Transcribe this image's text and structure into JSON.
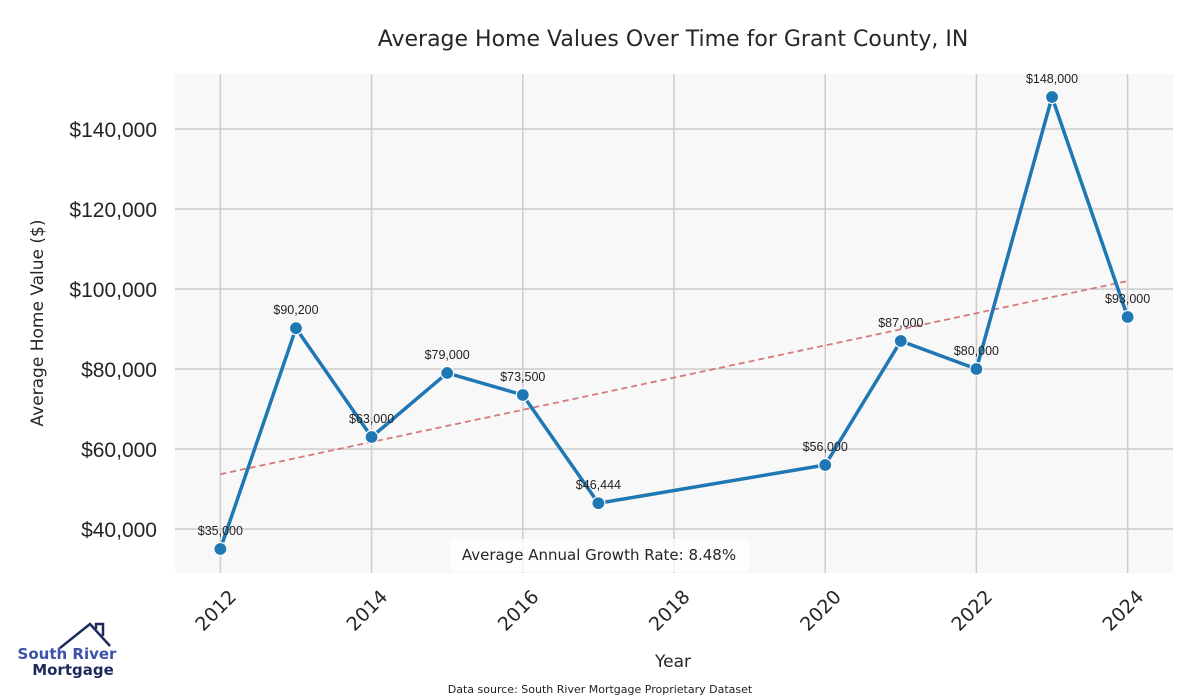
{
  "chart_data": {
    "type": "line",
    "title": "Average Home Values Over Time for Grant County, IN",
    "xlabel": "Year",
    "ylabel": "Average Home Value ($)",
    "x": [
      2012,
      2013,
      2014,
      2015,
      2016,
      2017,
      2020,
      2021,
      2022,
      2023,
      2024
    ],
    "series": [
      {
        "name": "Average Home Value",
        "color": "#1f77b4",
        "values": [
          35000,
          90200,
          63000,
          79000,
          73500,
          46444,
          56000,
          87000,
          80000,
          148000,
          93000
        ],
        "labels": [
          "$35,000",
          "$90,200",
          "$63,000",
          "$79,000",
          "$73,500",
          "$46,444",
          "$56,000",
          "$87,000",
          "$80,000",
          "$148,000",
          "$93,000"
        ]
      }
    ],
    "trendline": {
      "name": "Trend",
      "style": "dashed",
      "color": "#d47a7a",
      "start": {
        "x": 2012,
        "y": 53700
      },
      "end": {
        "x": 2024,
        "y": 102000
      }
    },
    "xticks": [
      2012,
      2014,
      2016,
      2018,
      2020,
      2022,
      2024
    ],
    "xtick_labels": [
      "2012",
      "2014",
      "2016",
      "2018",
      "2020",
      "2022",
      "2024"
    ],
    "yticks": [
      40000,
      60000,
      80000,
      100000,
      120000,
      140000
    ],
    "ytick_labels": [
      "$40,000",
      "$60,000",
      "$80,000",
      "$100,000",
      "$120,000",
      "$140,000"
    ],
    "xlim": [
      2011.4,
      2024.6
    ],
    "ylim": [
      29000,
      153750
    ],
    "grid": true,
    "annotation": "Average Annual Growth Rate: 8.48%",
    "source_note": "Data source: South River Mortgage Proprietary Dataset",
    "background": "#f8f8f8",
    "grid_color": "#cccccc"
  },
  "logo": {
    "line1": "South River",
    "line2": "Mortgage"
  }
}
